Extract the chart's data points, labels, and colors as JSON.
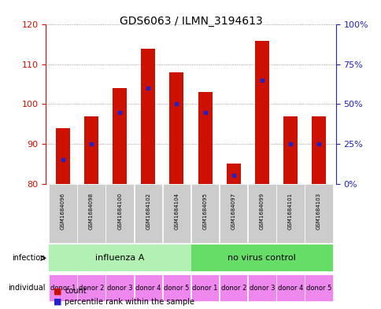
{
  "title": "GDS6063 / ILMN_3194613",
  "samples": [
    "GSM1684096",
    "GSM1684098",
    "GSM1684100",
    "GSM1684102",
    "GSM1684104",
    "GSM1684095",
    "GSM1684097",
    "GSM1684099",
    "GSM1684101",
    "GSM1684103"
  ],
  "counts": [
    94,
    97,
    104,
    114,
    108,
    103,
    85,
    116,
    97,
    97
  ],
  "percentile_ranks": [
    15,
    25,
    45,
    60,
    50,
    45,
    5,
    65,
    25,
    25
  ],
  "ymin": 80,
  "ymax": 120,
  "yticks": [
    80,
    90,
    100,
    110,
    120
  ],
  "right_yticks": [
    0,
    25,
    50,
    75,
    100
  ],
  "right_yticklabels": [
    "0%",
    "25%",
    "50%",
    "75%",
    "100%"
  ],
  "infection_groups": [
    {
      "label": "influenza A",
      "start": 0,
      "end": 5,
      "color": "#b3f0b3"
    },
    {
      "label": "no virus control",
      "start": 5,
      "end": 10,
      "color": "#66dd66"
    }
  ],
  "individual_labels": [
    "donor 1",
    "donor 2",
    "donor 3",
    "donor 4",
    "donor 5",
    "donor 1",
    "donor 2",
    "donor 3",
    "donor 4",
    "donor 5"
  ],
  "individual_color": "#ee88ee",
  "bar_color": "#cc1100",
  "percentile_color": "#2222cc",
  "bar_width": 0.5,
  "grid_color": "#888888",
  "bg_plot": "#ffffff",
  "bg_sample_labels": "#cccccc",
  "left_tick_color": "#cc1100",
  "right_tick_color": "#2222bb"
}
